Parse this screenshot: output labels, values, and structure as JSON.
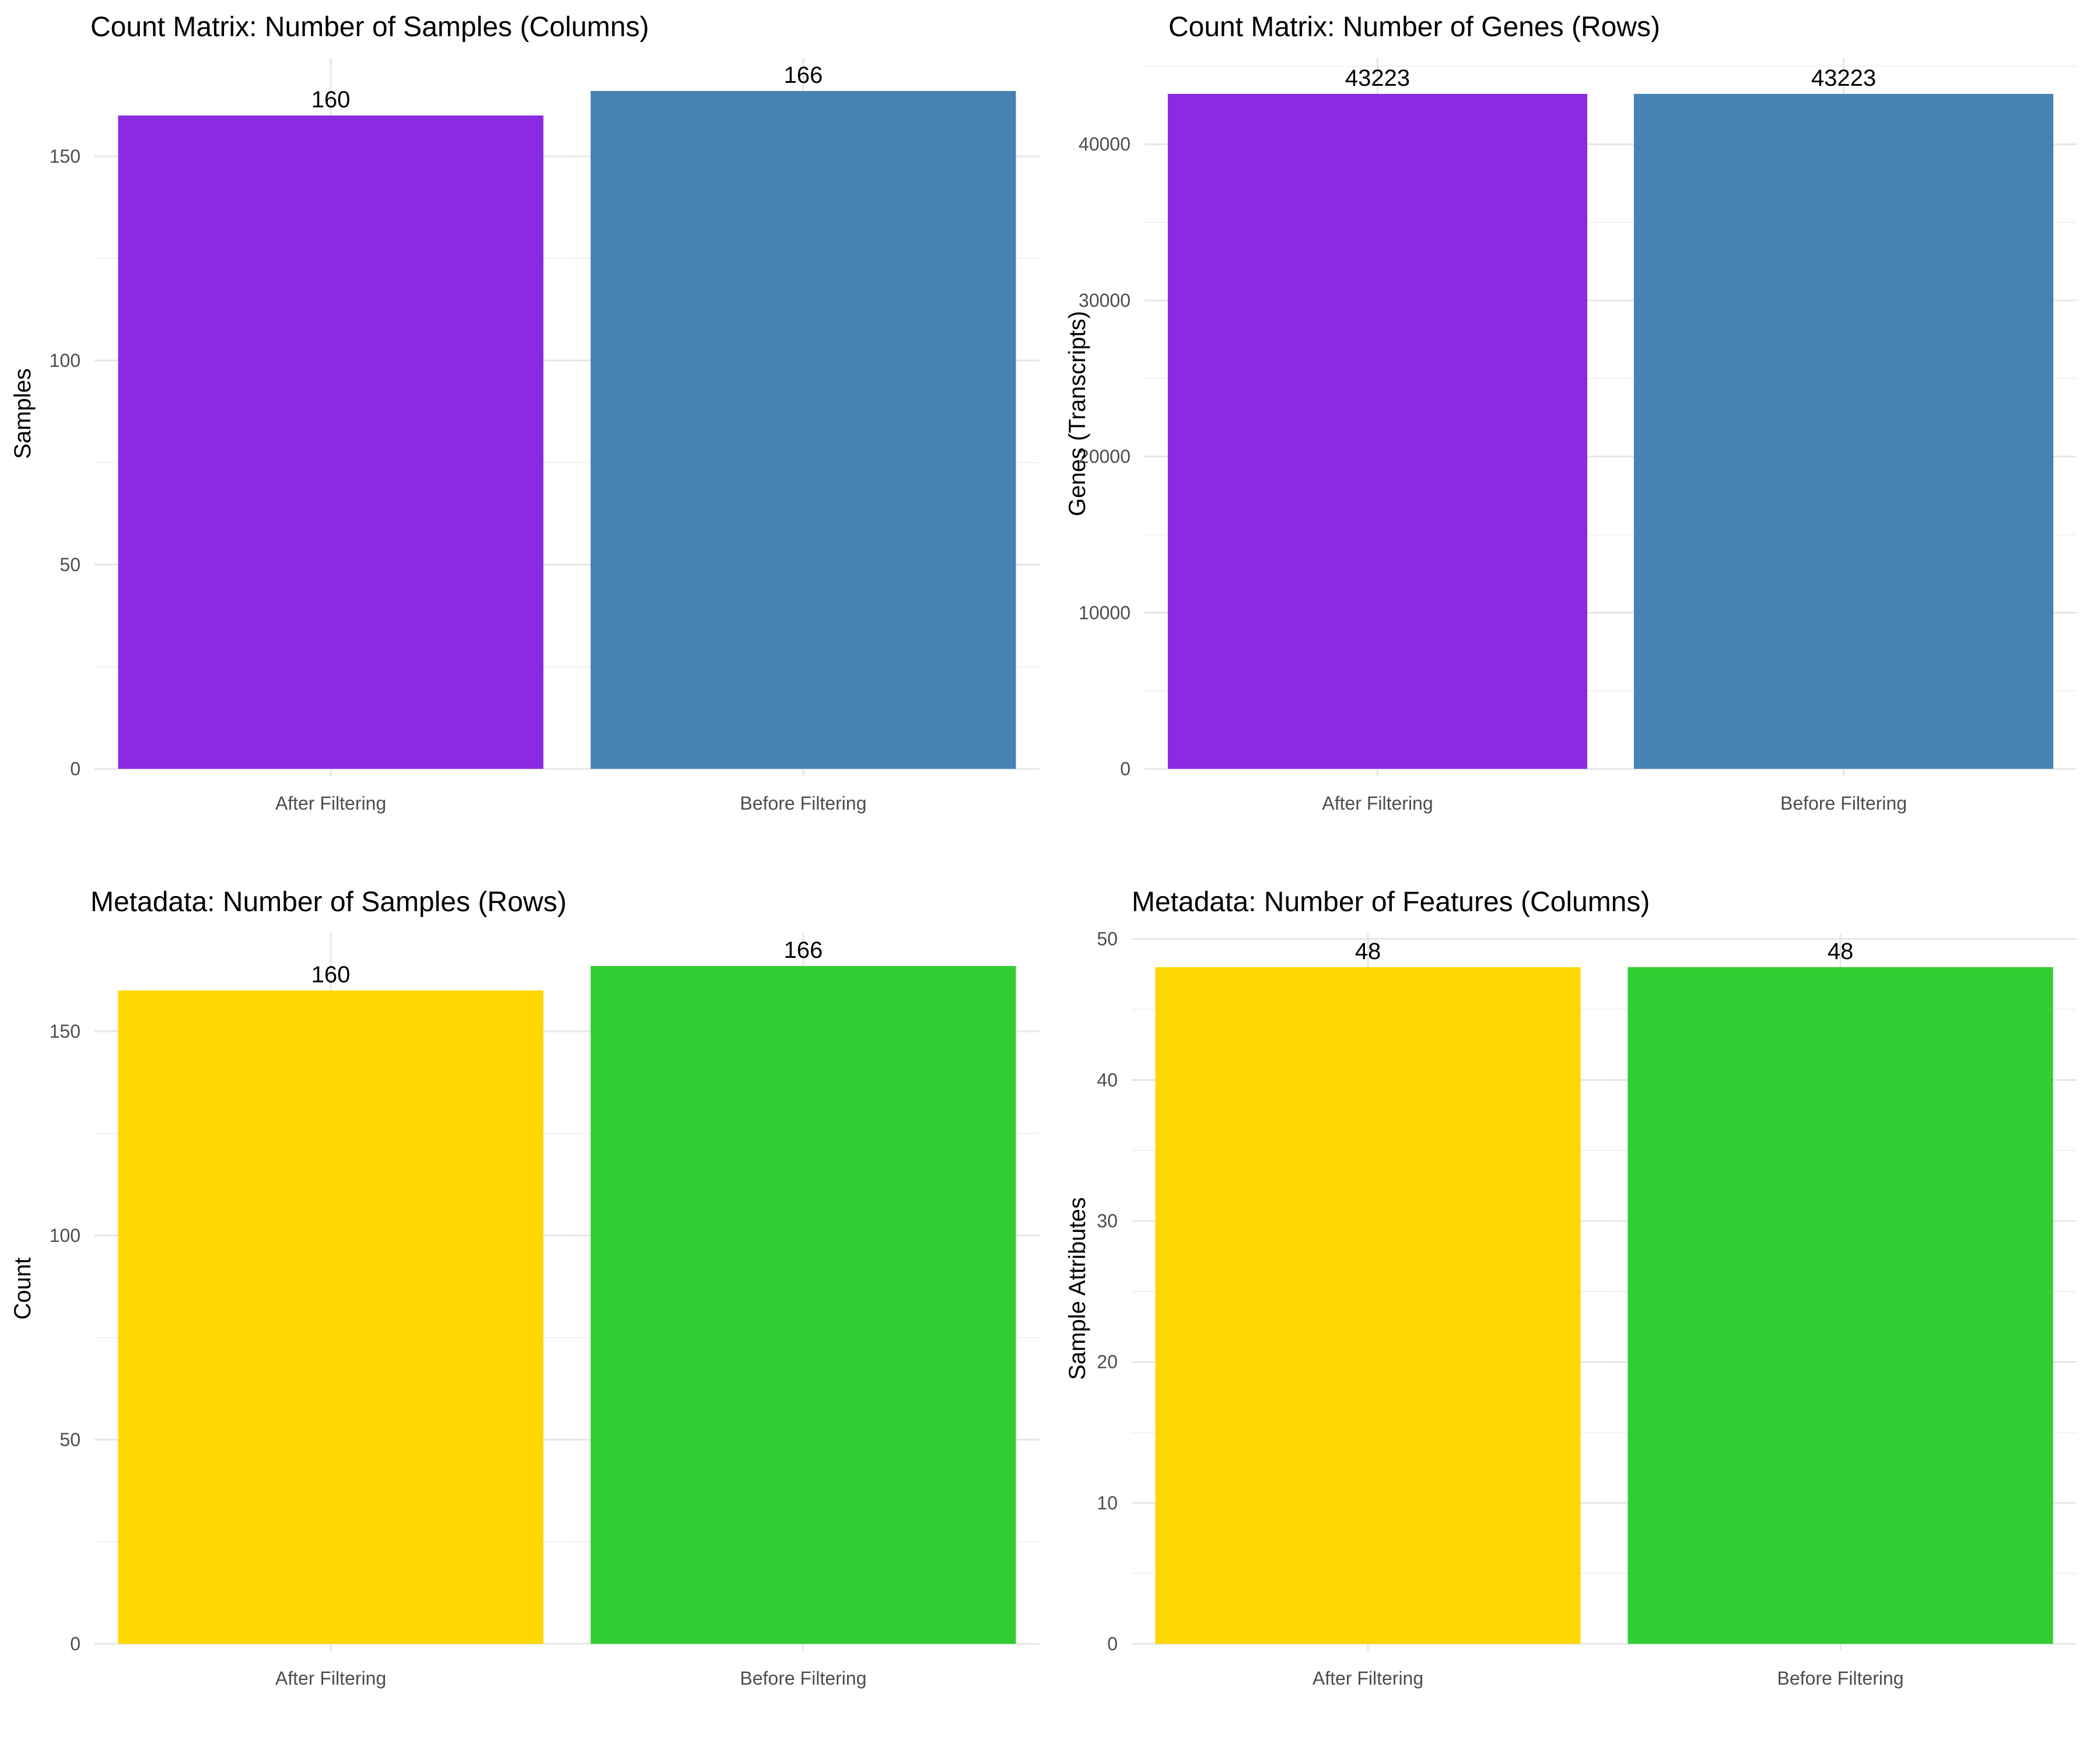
{
  "colors": {
    "purple": "#8A2BE2",
    "steelblue": "#4682B4",
    "gold": "#FFD700",
    "limegreen": "#32CD32"
  },
  "chart_data": [
    {
      "type": "bar",
      "title": "Count Matrix: Number of Samples (Columns)",
      "xlabel": "",
      "ylabel": "Samples",
      "categories": [
        "After Filtering",
        "Before Filtering"
      ],
      "values": [
        160,
        166
      ],
      "data_labels": [
        "160",
        "166"
      ],
      "bar_colors": [
        "#8A2BE2",
        "#4682B4"
      ],
      "ylim": [
        0,
        174
      ],
      "yticks": [
        0,
        50,
        100,
        150
      ],
      "ytick_labels": [
        "0",
        "50",
        "100",
        "150"
      ],
      "grid": true
    },
    {
      "type": "bar",
      "title": "Count Matrix: Number of Genes (Rows)",
      "xlabel": "",
      "ylabel": "Genes (Transcripts)",
      "categories": [
        "After Filtering",
        "Before Filtering"
      ],
      "values": [
        43223,
        43223
      ],
      "data_labels": [
        "43223",
        "43223"
      ],
      "bar_colors": [
        "#8A2BE2",
        "#4682B4"
      ],
      "ylim": [
        0,
        45500
      ],
      "yticks": [
        0,
        10000,
        20000,
        30000,
        40000
      ],
      "ytick_labels": [
        "0",
        "10000",
        "20000",
        "30000",
        "40000"
      ],
      "grid": true
    },
    {
      "type": "bar",
      "title": "Metadata: Number of Samples (Rows)",
      "xlabel": "",
      "ylabel": "Count",
      "categories": [
        "After Filtering",
        "Before Filtering"
      ],
      "values": [
        160,
        166
      ],
      "data_labels": [
        "160",
        "166"
      ],
      "bar_colors": [
        "#FFD700",
        "#32CD32"
      ],
      "ylim": [
        0,
        174
      ],
      "yticks": [
        0,
        50,
        100,
        150
      ],
      "ytick_labels": [
        "0",
        "50",
        "100",
        "150"
      ],
      "grid": true
    },
    {
      "type": "bar",
      "title": "Metadata: Number of Features (Columns)",
      "xlabel": "",
      "ylabel": "Sample Attributes",
      "categories": [
        "After Filtering",
        "Before Filtering"
      ],
      "values": [
        48,
        48
      ],
      "data_labels": [
        "48",
        "48"
      ],
      "bar_colors": [
        "#FFD700",
        "#32CD32"
      ],
      "ylim": [
        0,
        50.4
      ],
      "yticks": [
        0,
        10,
        20,
        30,
        40,
        50
      ],
      "ytick_labels": [
        "0",
        "10",
        "20",
        "30",
        "40",
        "50"
      ],
      "grid": true
    }
  ]
}
